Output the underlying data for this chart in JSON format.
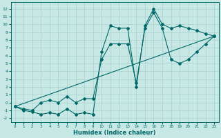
{
  "xlabel": "Humidex (Indice chaleur)",
  "bg_color": "#c8e8e5",
  "grid_color": "#a8d0ce",
  "line_color": "#006868",
  "xticks": [
    0,
    1,
    2,
    3,
    4,
    5,
    6,
    7,
    8,
    9,
    10,
    11,
    12,
    13,
    14,
    15,
    16,
    17,
    18,
    19,
    20,
    21,
    22,
    23
  ],
  "yticks": [
    -2,
    -1,
    0,
    1,
    2,
    3,
    4,
    5,
    6,
    7,
    8,
    9,
    10,
    11,
    12
  ],
  "curve_jagged1_x": [
    0,
    1,
    2,
    3,
    4,
    5,
    6,
    7,
    8,
    9,
    10,
    11,
    12,
    13,
    14,
    15,
    16,
    17,
    18,
    19,
    20,
    21,
    22,
    23
  ],
  "curve_jagged1_y": [
    -0.5,
    -1.0,
    -1.2,
    -1.5,
    -1.3,
    -1.5,
    -0.8,
    -1.5,
    -1.3,
    -1.5,
    6.5,
    9.8,
    9.5,
    9.5,
    2.0,
    9.8,
    12.0,
    10.0,
    9.5,
    9.8,
    9.5,
    9.2,
    8.8,
    8.5
  ],
  "curve_jagged2_x": [
    0,
    1,
    2,
    3,
    4,
    5,
    6,
    7,
    8,
    9,
    10,
    11,
    12,
    13,
    14,
    15,
    16,
    17,
    18,
    19,
    20,
    21,
    22,
    23
  ],
  "curve_jagged2_y": [
    -0.5,
    -0.8,
    -1.0,
    0.0,
    0.3,
    0.0,
    0.8,
    0.0,
    0.5,
    0.5,
    5.5,
    7.5,
    7.5,
    7.5,
    2.5,
    9.5,
    11.5,
    9.5,
    5.5,
    5.0,
    5.5,
    6.5,
    7.5,
    8.5
  ],
  "curve_line_x": [
    0,
    23
  ],
  "curve_line_y": [
    -0.5,
    8.5
  ]
}
